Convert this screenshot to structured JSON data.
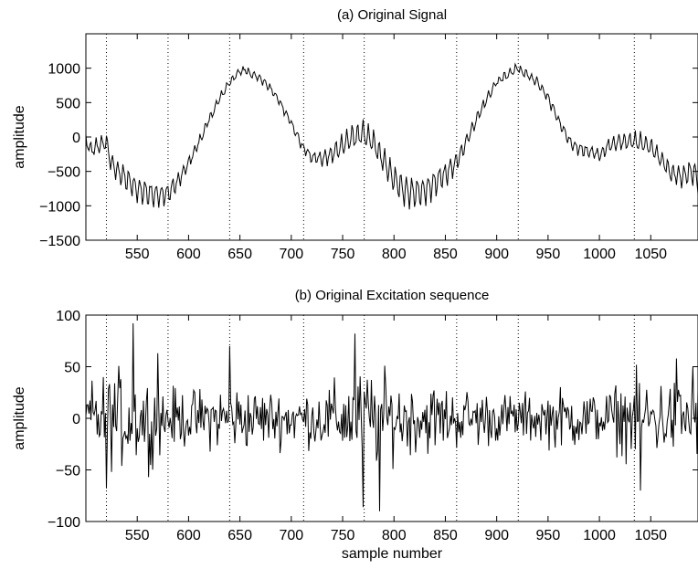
{
  "chart_data": [
    {
      "type": "line",
      "title": "(a) Original Signal",
      "xlabel": "",
      "ylabel": "amplitude",
      "xlim": [
        500,
        1096
      ],
      "ylim": [
        -1500,
        1500
      ],
      "xticks": [
        550,
        600,
        650,
        700,
        750,
        800,
        850,
        900,
        950,
        1000,
        1050
      ],
      "xtick_labels": [
        "550",
        "600",
        "650",
        "700",
        "750",
        "800",
        "850",
        "900",
        "950",
        "1000",
        "1050"
      ],
      "yticks": [
        -1500,
        -1000,
        -500,
        0,
        500,
        1000
      ],
      "ytick_labels": [
        "−1500",
        "−1000",
        "−500",
        "0",
        "500",
        "1000"
      ],
      "grid": false,
      "vlines": [
        520,
        580,
        640,
        712,
        771,
        861,
        921,
        1034
      ],
      "series": [
        {
          "envelope_x": [
            500,
            505,
            510,
            515,
            520,
            525,
            530,
            540,
            550,
            560,
            570,
            580,
            590,
            600,
            610,
            620,
            630,
            640,
            650,
            655,
            660,
            670,
            680,
            690,
            700,
            710,
            720,
            730,
            740,
            750,
            760,
            770,
            780,
            790,
            800,
            810,
            820,
            830,
            840,
            850,
            860,
            870,
            880,
            890,
            900,
            910,
            920,
            930,
            940,
            950,
            960,
            970,
            980,
            990,
            1000,
            1010,
            1020,
            1030,
            1040,
            1050,
            1060,
            1070,
            1080,
            1090,
            1096
          ],
          "envelope_y": [
            -50,
            -200,
            -150,
            -100,
            -80,
            -400,
            -480,
            -620,
            -760,
            -800,
            -850,
            -820,
            -640,
            -380,
            -80,
            250,
            550,
            800,
            950,
            980,
            930,
            850,
            700,
            480,
            200,
            -120,
            -300,
            -320,
            -250,
            -120,
            0,
            60,
            -80,
            -350,
            -620,
            -770,
            -820,
            -780,
            -660,
            -540,
            -380,
            -80,
            250,
            550,
            800,
            900,
            1000,
            900,
            780,
            580,
            250,
            -50,
            -180,
            -200,
            -260,
            -120,
            -70,
            -60,
            -80,
            -150,
            -320,
            -520,
            -580,
            -500,
            -620
          ],
          "ripple_amplitude": [
            [
              500,
              120
            ],
            [
              520,
              160
            ],
            [
              540,
              200
            ],
            [
              560,
              220
            ],
            [
              580,
              180
            ],
            [
              600,
              100
            ],
            [
              620,
              70
            ],
            [
              640,
              70
            ],
            [
              660,
              60
            ],
            [
              680,
              60
            ],
            [
              700,
              70
            ],
            [
              720,
              90
            ],
            [
              740,
              160
            ],
            [
              760,
              200
            ],
            [
              780,
              200
            ],
            [
              800,
              240
            ],
            [
              820,
              260
            ],
            [
              840,
              230
            ],
            [
              860,
              170
            ],
            [
              880,
              90
            ],
            [
              900,
              80
            ],
            [
              920,
              80
            ],
            [
              940,
              80
            ],
            [
              960,
              90
            ],
            [
              980,
              110
            ],
            [
              1000,
              100
            ],
            [
              1020,
              140
            ],
            [
              1040,
              160
            ],
            [
              1060,
              130
            ],
            [
              1080,
              200
            ],
            [
              1096,
              230
            ]
          ]
        }
      ]
    },
    {
      "type": "line",
      "title": "(b) Original Excitation sequence",
      "xlabel": "sample number",
      "ylabel": "amplitude",
      "xlim": [
        500,
        1096
      ],
      "ylim": [
        -100,
        100
      ],
      "xticks": [
        550,
        600,
        650,
        700,
        750,
        800,
        850,
        900,
        950,
        1000,
        1050
      ],
      "xtick_labels": [
        "550",
        "600",
        "650",
        "700",
        "750",
        "800",
        "850",
        "900",
        "950",
        "1000",
        "1050"
      ],
      "yticks": [
        -100,
        -50,
        0,
        50,
        100
      ],
      "ytick_labels": [
        "−100",
        "−50",
        "0",
        "50",
        "100"
      ],
      "grid": false,
      "vlines": [
        520,
        580,
        640,
        712,
        771,
        861,
        921,
        1034
      ],
      "series": [
        {
          "amplitude_profile": [
            [
              500,
              35
            ],
            [
              520,
              45
            ],
            [
              540,
              50
            ],
            [
              560,
              40
            ],
            [
              580,
              30
            ],
            [
              600,
              28
            ],
            [
              620,
              30
            ],
            [
              640,
              35
            ],
            [
              660,
              30
            ],
            [
              680,
              28
            ],
            [
              700,
              28
            ],
            [
              720,
              28
            ],
            [
              740,
              35
            ],
            [
              760,
              45
            ],
            [
              780,
              50
            ],
            [
              800,
              40
            ],
            [
              820,
              35
            ],
            [
              840,
              35
            ],
            [
              860,
              30
            ],
            [
              880,
              30
            ],
            [
              900,
              25
            ],
            [
              920,
              25
            ],
            [
              940,
              25
            ],
            [
              960,
              30
            ],
            [
              980,
              30
            ],
            [
              1000,
              25
            ],
            [
              1020,
              35
            ],
            [
              1040,
              45
            ],
            [
              1060,
              40
            ],
            [
              1080,
              40
            ],
            [
              1096,
              40
            ]
          ],
          "peaks": [
            [
              520,
              -68
            ],
            [
              546,
              92
            ],
            [
              561,
              -57
            ],
            [
              570,
              63
            ],
            [
              640,
              70
            ],
            [
              762,
              82
            ],
            [
              770,
              -86
            ],
            [
              786,
              -90
            ],
            [
              1040,
              -70
            ],
            [
              1075,
              58
            ],
            [
              1091,
              50
            ]
          ]
        }
      ]
    }
  ]
}
